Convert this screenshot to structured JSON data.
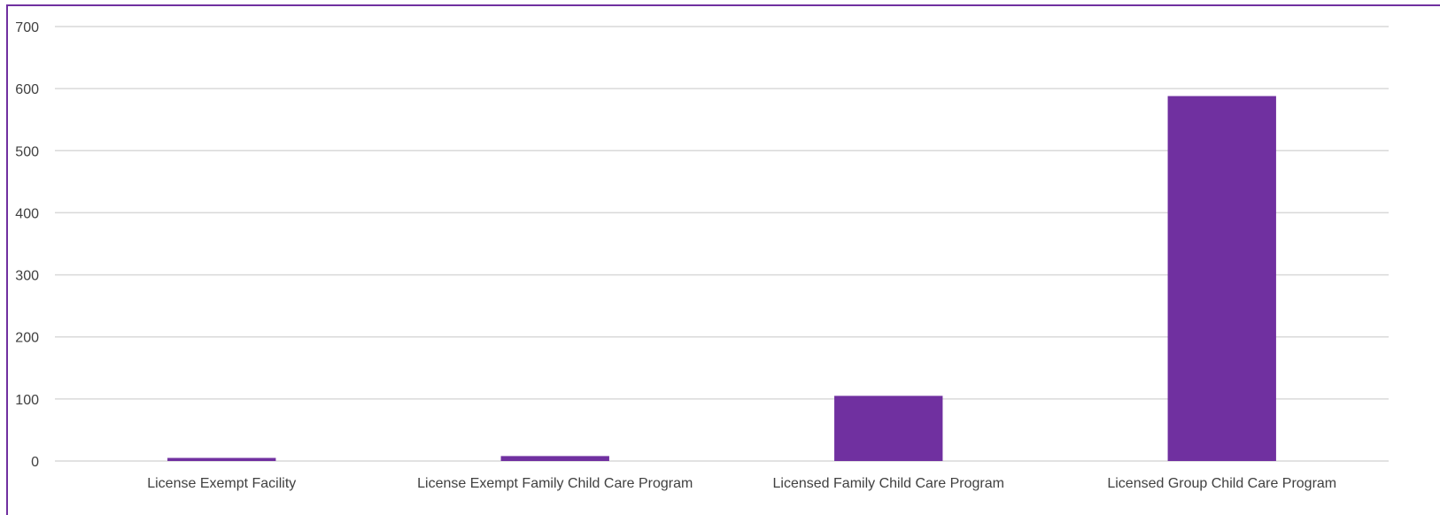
{
  "chart_data": {
    "type": "bar",
    "title": "",
    "xlabel": "",
    "ylabel": "",
    "categories": [
      "License Exempt Facility",
      "License Exempt Family Child Care Program",
      "Licensed Family Child Care Program",
      "Licensed Group Child Care Program"
    ],
    "values": [
      5,
      8,
      105,
      588
    ],
    "ylim": [
      0,
      700
    ],
    "yticks": [
      "0",
      "100",
      "200",
      "300",
      "400",
      "500",
      "600",
      "700"
    ],
    "grid": true,
    "bar_color": "#7030a0",
    "grid_color": "#d9d9d9",
    "border_color": "#7030a0"
  }
}
